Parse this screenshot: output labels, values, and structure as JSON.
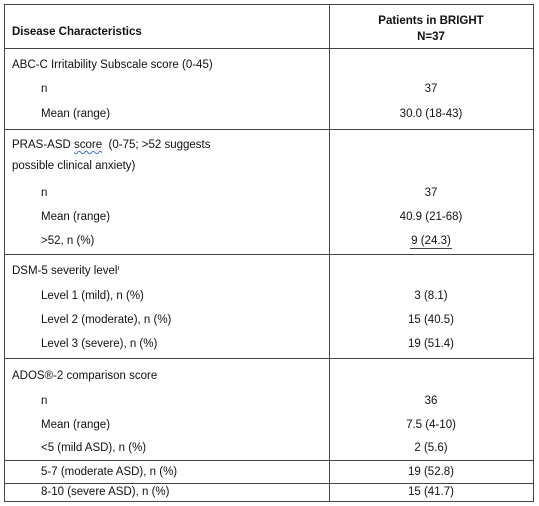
{
  "header": {
    "col1": "Disease Characteristics",
    "col2_line1": "Patients in BRIGHT",
    "col2_line2": "N=37"
  },
  "abc": {
    "title": "ABC-C Irritability Subscale score (0-45)",
    "n_label": "n",
    "n_value": "37",
    "mean_label": "Mean (range)",
    "mean_value": "30.0 (18-43)"
  },
  "pras": {
    "title_part1": "PRAS-ASD ",
    "title_score": "score",
    "title_part2": "  (0-75; >52 suggests",
    "title_line2": "possible clinical anxiety)",
    "n_label": "n",
    "n_value": "37",
    "mean_label": "Mean (range)",
    "mean_value": "40.9 (21-68)",
    "gt52_label": ">52, n (%)",
    "gt52_value": "9 (24.3)"
  },
  "dsm": {
    "title": "DSM-5 severity level",
    "title_sup": "i",
    "l1_label": "Level 1 (mild), n (%)",
    "l1_value": "3 (8.1)",
    "l2_label": "Level 2 (moderate), n (%)",
    "l2_value": "15 (40.5)",
    "l3_label": "Level 3 (severe), n (%)",
    "l3_value": "19 (51.4)"
  },
  "ados": {
    "title": "ADOS®-2 comparison score",
    "n_label": "n",
    "n_value": "36",
    "mean_label": "Mean (range)",
    "mean_value": "7.5 (4-10)",
    "lt5_label": "<5 (mild ASD), n (%)",
    "lt5_value": "2 (5.6)",
    "mid_label": "5-7 (moderate ASD), n (%)",
    "mid_value": "19 (52.8)",
    "hi_label": "8-10 (severe ASD), n (%)",
    "hi_value": "15 (41.7)"
  }
}
